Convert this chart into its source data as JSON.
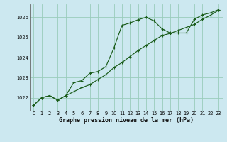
{
  "title": "Graphe pression niveau de la mer (hPa)",
  "background_color": "#cce8f0",
  "grid_color": "#99ccbb",
  "line_color": "#1a5c1a",
  "xlim": [
    -0.5,
    23.5
  ],
  "ylim": [
    1021.35,
    1026.65
  ],
  "yticks": [
    1022,
    1023,
    1024,
    1025,
    1026
  ],
  "xticks": [
    0,
    1,
    2,
    3,
    4,
    5,
    6,
    7,
    8,
    9,
    10,
    11,
    12,
    13,
    14,
    15,
    16,
    17,
    18,
    19,
    20,
    21,
    22,
    23
  ],
  "line1_x": [
    0,
    1,
    2,
    3,
    4,
    5,
    6,
    7,
    8,
    9,
    10,
    11,
    12,
    13,
    14,
    15,
    16,
    17,
    18,
    19,
    20,
    21,
    22,
    23
  ],
  "line1_y": [
    1021.62,
    1022.0,
    1022.1,
    1021.88,
    1022.1,
    1022.75,
    1022.85,
    1023.22,
    1023.3,
    1023.55,
    1024.48,
    1025.6,
    1025.72,
    1025.88,
    1026.0,
    1025.82,
    1025.42,
    1025.22,
    1025.22,
    1025.22,
    1025.9,
    1026.12,
    1026.22,
    1026.38
  ],
  "line2_x": [
    0,
    1,
    2,
    3,
    4,
    5,
    6,
    7,
    8,
    9,
    10,
    11,
    12,
    13,
    14,
    15,
    16,
    17,
    18,
    19,
    20,
    21,
    22,
    23
  ],
  "line2_y": [
    1021.62,
    1022.0,
    1022.1,
    1021.88,
    1022.1,
    1022.3,
    1022.5,
    1022.65,
    1022.9,
    1023.15,
    1023.5,
    1023.75,
    1024.05,
    1024.35,
    1024.6,
    1024.85,
    1025.1,
    1025.2,
    1025.35,
    1025.5,
    1025.65,
    1025.9,
    1026.1,
    1026.35
  ]
}
